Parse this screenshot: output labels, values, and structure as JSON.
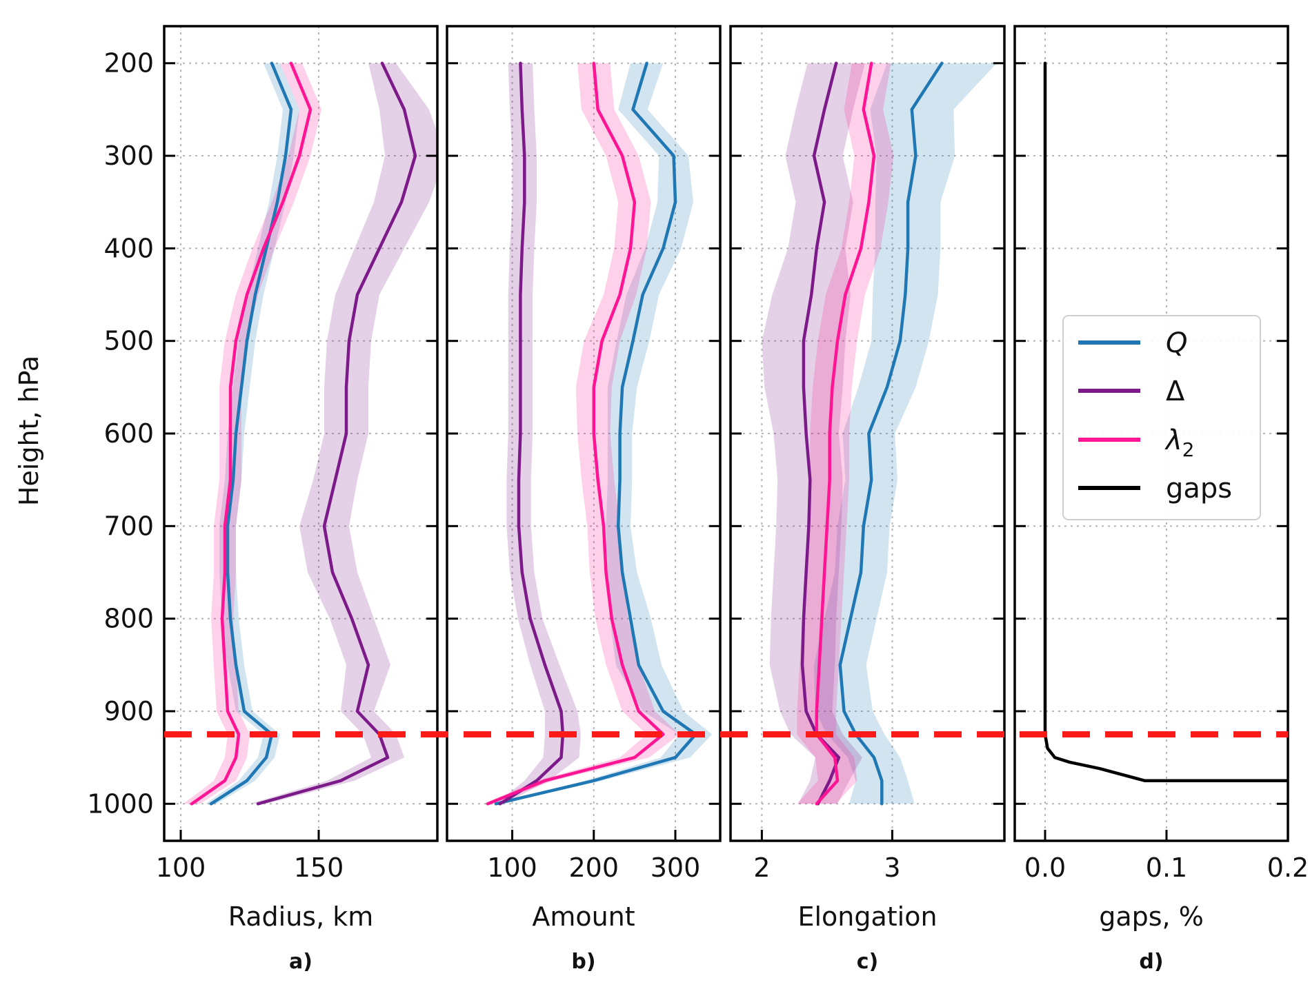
{
  "chart_data": {
    "type": "line",
    "y_label": "Height, hPa",
    "y_range": [
      1040,
      160
    ],
    "y_ticks": [
      200,
      300,
      400,
      500,
      600,
      700,
      800,
      900,
      1000
    ],
    "y_tick_labels": [
      "200",
      "300",
      "400",
      "500",
      "600",
      "700",
      "800",
      "900",
      "1000"
    ],
    "levels": [
      200,
      250,
      300,
      350,
      400,
      450,
      500,
      550,
      600,
      650,
      700,
      750,
      800,
      850,
      900,
      925,
      950,
      975,
      1000
    ],
    "threshold_level": 925,
    "threshold_color": "#ff1a1a",
    "colors": {
      "Q": "#1f77b4",
      "Delta": "#7b1a88",
      "lambda2": "#ff1493",
      "gaps": "#000000"
    },
    "legend": {
      "placement": "center-right of panel d",
      "entries": [
        {
          "key": "Q",
          "label": "Q",
          "style": "italic"
        },
        {
          "key": "Delta",
          "label": "Δ",
          "style": "normal"
        },
        {
          "key": "lambda2",
          "label": "λ",
          "subscript": "2",
          "style": "italic"
        },
        {
          "key": "gaps",
          "label": "gaps",
          "style": "normal"
        }
      ]
    },
    "panels": [
      {
        "id": "a",
        "panel_label": "a)",
        "xlabel": "Radius, km",
        "x_range": [
          94,
          193
        ],
        "x_ticks": [
          100,
          150
        ],
        "x_tick_labels": [
          "100",
          "150"
        ],
        "series": [
          {
            "key": "Q",
            "name": "Q",
            "values": [
              133,
              140,
              138,
              135,
              131,
              127,
              124,
              122,
              120,
              119,
              117,
              117,
              118,
              120,
              123,
              133,
              131,
              124,
              111
            ],
            "spread": [
              3,
              3,
              3,
              3,
              3,
              3,
              3,
              3,
              3,
              3,
              3,
              3,
              3,
              3,
              3,
              3,
              3,
              3,
              2
            ]
          },
          {
            "key": "Delta",
            "name": "Δ",
            "values": [
              173,
              181,
              185,
              180,
              172,
              164,
              161,
              160,
              160,
              156,
              152,
              155,
              162,
              168,
              164,
              172,
              175,
              158,
              128
            ],
            "spread": [
              5,
              9,
              11,
              10,
              9,
              8,
              8,
              8,
              8,
              8,
              9,
              9,
              8,
              8,
              6,
              6,
              6,
              5,
              3
            ]
          },
          {
            "key": "lambda2",
            "name": "λ2",
            "values": [
              140,
              147,
              143,
              137,
              130,
              124,
              120,
              118,
              118,
              118,
              116,
              116,
              115,
              116,
              117,
              121,
              120,
              116,
              104
            ],
            "spread": [
              4,
              4,
              4,
              4,
              4,
              4,
              4,
              4,
              4,
              4,
              4,
              4,
              4,
              4,
              4,
              4,
              4,
              4,
              3
            ]
          }
        ]
      },
      {
        "id": "b",
        "panel_label": "b)",
        "xlabel": "Amount",
        "x_range": [
          20,
          355
        ],
        "x_ticks": [
          100,
          200,
          300
        ],
        "x_tick_labels": [
          "100",
          "200",
          "300"
        ],
        "series": [
          {
            "key": "Q",
            "name": "Q",
            "values": [
              265,
              248,
              298,
              300,
              285,
              260,
              248,
              235,
              232,
              232,
              230,
              235,
              245,
              255,
              285,
              325,
              300,
              200,
              80
            ],
            "spread": [
              20,
              18,
              18,
              22,
              22,
              20,
              20,
              18,
              15,
              15,
              15,
              18,
              25,
              28,
              25,
              20,
              18,
              10,
              5
            ]
          },
          {
            "key": "Delta",
            "name": "Δ",
            "values": [
              110,
              112,
              115,
              115,
              112,
              110,
              110,
              110,
              110,
              108,
              108,
              112,
              122,
              140,
              160,
              162,
              160,
              130,
              85
            ],
            "spread": [
              15,
              15,
              15,
              15,
              15,
              15,
              15,
              15,
              15,
              15,
              15,
              15,
              15,
              18,
              20,
              22,
              22,
              15,
              5
            ]
          },
          {
            "key": "lambda2",
            "name": "λ2",
            "values": [
              200,
              205,
              235,
              250,
              245,
              232,
              210,
              200,
              200,
              205,
              212,
              215,
              222,
              235,
              255,
              285,
              250,
              140,
              70
            ],
            "spread": [
              20,
              20,
              20,
              20,
              20,
              20,
              22,
              22,
              20,
              20,
              20,
              20,
              20,
              20,
              20,
              20,
              18,
              10,
              5
            ]
          }
        ]
      },
      {
        "id": "c",
        "panel_label": "c)",
        "xlabel": "Elongation",
        "x_range": [
          1.76,
          3.86
        ],
        "x_ticks": [
          2,
          3
        ],
        "x_tick_labels": [
          "2",
          "3"
        ],
        "series": [
          {
            "key": "Q",
            "name": "Q",
            "values": [
              3.38,
              3.15,
              3.18,
              3.12,
              3.12,
              3.1,
              3.06,
              2.96,
              2.82,
              2.84,
              2.78,
              2.76,
              2.68,
              2.6,
              2.63,
              2.72,
              2.86,
              2.92,
              2.92
            ],
            "spread": [
              0.42,
              0.32,
              0.3,
              0.25,
              0.25,
              0.25,
              0.22,
              0.22,
              0.2,
              0.2,
              0.2,
              0.2,
              0.2,
              0.2,
              0.22,
              0.22,
              0.2,
              0.2,
              0.25
            ]
          },
          {
            "key": "Delta",
            "name": "Δ",
            "values": [
              2.57,
              2.48,
              2.4,
              2.48,
              2.42,
              2.38,
              2.32,
              2.32,
              2.34,
              2.37,
              2.36,
              2.34,
              2.32,
              2.31,
              2.34,
              2.42,
              2.59,
              2.52,
              2.43
            ],
            "spread": [
              0.22,
              0.22,
              0.22,
              0.22,
              0.22,
              0.3,
              0.32,
              0.3,
              0.25,
              0.25,
              0.25,
              0.25,
              0.25,
              0.25,
              0.2,
              0.2,
              0.18,
              0.15,
              0.15
            ]
          },
          {
            "key": "lambda2",
            "name": "λ2",
            "values": [
              2.84,
              2.78,
              2.86,
              2.82,
              2.76,
              2.64,
              2.58,
              2.54,
              2.52,
              2.52,
              2.5,
              2.48,
              2.46,
              2.44,
              2.42,
              2.42,
              2.56,
              2.58,
              2.42
            ],
            "spread": [
              0.15,
              0.15,
              0.15,
              0.15,
              0.15,
              0.15,
              0.15,
              0.15,
              0.15,
              0.15,
              0.15,
              0.15,
              0.15,
              0.15,
              0.15,
              0.15,
              0.15,
              0.15,
              0.15
            ]
          }
        ]
      },
      {
        "id": "d",
        "panel_label": "d)",
        "xlabel": "gaps, %",
        "x_range": [
          -0.025,
          0.2
        ],
        "x_ticks": [
          0.0,
          0.1,
          0.2
        ],
        "x_tick_labels": [
          "0.0",
          "0.1",
          "0.2"
        ],
        "series": [
          {
            "key": "gaps",
            "name": "gaps",
            "points": [
              [
                0.0,
                200
              ],
              [
                0.0,
                925
              ],
              [
                0.002,
                940
              ],
              [
                0.008,
                950
              ],
              [
                0.02,
                955
              ],
              [
                0.045,
                962
              ],
              [
                0.082,
                975
              ],
              [
                0.2,
                975
              ]
            ]
          }
        ]
      }
    ]
  }
}
